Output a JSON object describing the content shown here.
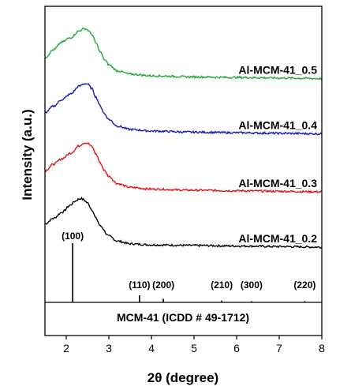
{
  "chart_data": {
    "type": "line",
    "xlabel": "2θ (degree)",
    "ylabel": "Intensity (a.u.)",
    "xlim": [
      1.5,
      8
    ],
    "x_ticks": [
      2,
      3,
      4,
      5,
      6,
      7,
      8
    ],
    "x_tick_labels": [
      "2",
      "3",
      "4",
      "5",
      "6",
      "7",
      "8"
    ],
    "y_ticks_shown": false,
    "legend": "labels placed on the right of each curve",
    "series": [
      {
        "name": "Al-MCM-41_0.2",
        "color": "#000000",
        "baseline": 0.0,
        "x": [
          1.5,
          1.7,
          1.9,
          2.1,
          2.2,
          2.3,
          2.35,
          2.4,
          2.5,
          2.6,
          2.7,
          2.8,
          3.0,
          3.2,
          3.5,
          4.0,
          5.0,
          6.0,
          7.0,
          8.0
        ],
        "y": [
          0.42,
          0.52,
          0.63,
          0.76,
          0.83,
          0.87,
          0.88,
          0.86,
          0.8,
          0.68,
          0.52,
          0.38,
          0.2,
          0.11,
          0.06,
          0.04,
          0.03,
          0.02,
          0.01,
          0.0
        ]
      },
      {
        "name": "Al-MCM-41_0.3",
        "color": "#e0141a",
        "baseline": 1.0,
        "x": [
          1.5,
          1.7,
          1.9,
          2.1,
          2.3,
          2.4,
          2.45,
          2.5,
          2.6,
          2.7,
          2.8,
          2.9,
          3.0,
          3.2,
          3.5,
          4.0,
          5.0,
          6.0,
          7.0,
          8.0
        ],
        "y": [
          0.38,
          0.5,
          0.6,
          0.7,
          0.83,
          0.88,
          0.89,
          0.88,
          0.82,
          0.68,
          0.52,
          0.38,
          0.28,
          0.15,
          0.08,
          0.05,
          0.03,
          0.02,
          0.01,
          0.0
        ]
      },
      {
        "name": "Al-MCM-41_0.4",
        "color": "#1a1ab4",
        "baseline": 2.05,
        "x": [
          1.5,
          1.7,
          1.9,
          2.1,
          2.3,
          2.4,
          2.45,
          2.5,
          2.6,
          2.7,
          2.8,
          2.9,
          3.0,
          3.2,
          3.5,
          4.0,
          5.0,
          6.0,
          7.0,
          8.0
        ],
        "y": [
          0.38,
          0.5,
          0.62,
          0.72,
          0.86,
          0.9,
          0.91,
          0.9,
          0.82,
          0.66,
          0.5,
          0.36,
          0.26,
          0.14,
          0.08,
          0.05,
          0.03,
          0.02,
          0.01,
          0.0
        ]
      },
      {
        "name": "Al-MCM-41_0.5",
        "color": "#22a83a",
        "baseline": 3.05,
        "x": [
          1.5,
          1.7,
          1.9,
          2.1,
          2.3,
          2.4,
          2.45,
          2.5,
          2.6,
          2.7,
          2.8,
          2.9,
          3.0,
          3.2,
          3.5,
          4.0,
          5.0,
          6.0,
          7.0,
          8.0
        ],
        "y": [
          0.38,
          0.52,
          0.66,
          0.74,
          0.86,
          0.9,
          0.9,
          0.88,
          0.8,
          0.64,
          0.48,
          0.34,
          0.25,
          0.14,
          0.08,
          0.05,
          0.03,
          0.02,
          0.01,
          0.0
        ]
      }
    ],
    "reference": {
      "label": "MCM-41 (ICDD # 49-1712)",
      "peaks": [
        {
          "hkl": "(100)",
          "x": 2.15,
          "intensity": 1.0
        },
        {
          "hkl": "(110)",
          "x": 3.72,
          "intensity": 0.12
        },
        {
          "hkl": "(200)",
          "x": 4.28,
          "intensity": 0.06
        },
        {
          "hkl": "(210)",
          "x": 5.65,
          "intensity": 0.03
        },
        {
          "hkl": "(300)",
          "x": 6.35,
          "intensity": 0.02
        },
        {
          "hkl": "(220)",
          "x": 7.6,
          "intensity": 0.02
        }
      ]
    }
  }
}
